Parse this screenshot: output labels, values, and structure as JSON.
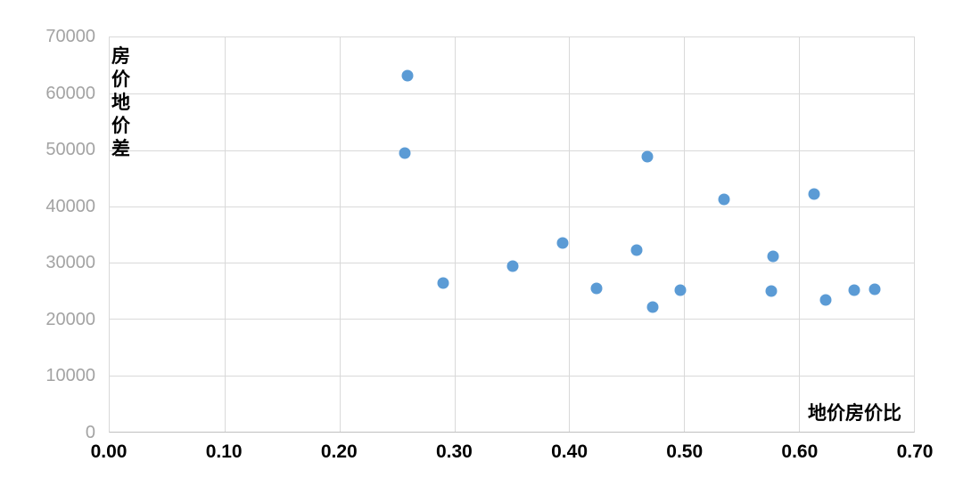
{
  "chart_data": {
    "type": "scatter",
    "title": "",
    "xlabel": "地价房价比",
    "ylabel": "房价地价差",
    "xlim": [
      0.0,
      0.7
    ],
    "ylim": [
      0,
      70000
    ],
    "x_ticks": [
      "0.00",
      "0.10",
      "0.20",
      "0.30",
      "0.40",
      "0.50",
      "0.60",
      "0.70"
    ],
    "y_ticks": [
      "0",
      "10000",
      "20000",
      "30000",
      "40000",
      "50000",
      "60000",
      "70000"
    ],
    "grid": true,
    "legend": false,
    "marker": "circle",
    "series_name": "",
    "points": [
      {
        "x": 0.257,
        "y": 49400
      },
      {
        "x": 0.259,
        "y": 63200
      },
      {
        "x": 0.29,
        "y": 26400
      },
      {
        "x": 0.351,
        "y": 29400
      },
      {
        "x": 0.394,
        "y": 33500
      },
      {
        "x": 0.424,
        "y": 25500
      },
      {
        "x": 0.459,
        "y": 32200
      },
      {
        "x": 0.468,
        "y": 48900
      },
      {
        "x": 0.473,
        "y": 22200
      },
      {
        "x": 0.497,
        "y": 25200
      },
      {
        "x": 0.535,
        "y": 41300
      },
      {
        "x": 0.576,
        "y": 24900
      },
      {
        "x": 0.577,
        "y": 31100
      },
      {
        "x": 0.613,
        "y": 42200
      },
      {
        "x": 0.623,
        "y": 23400
      },
      {
        "x": 0.648,
        "y": 25200
      },
      {
        "x": 0.666,
        "y": 25300
      }
    ],
    "colors": {
      "point": "#5b9bd5",
      "grid": "#d9d9d9",
      "axis_line": "#c0c0c0",
      "y_tick_text": "#a3a3a3",
      "x_tick_text": "#000000",
      "title_text": "#000000",
      "background": "#ffffff"
    }
  }
}
